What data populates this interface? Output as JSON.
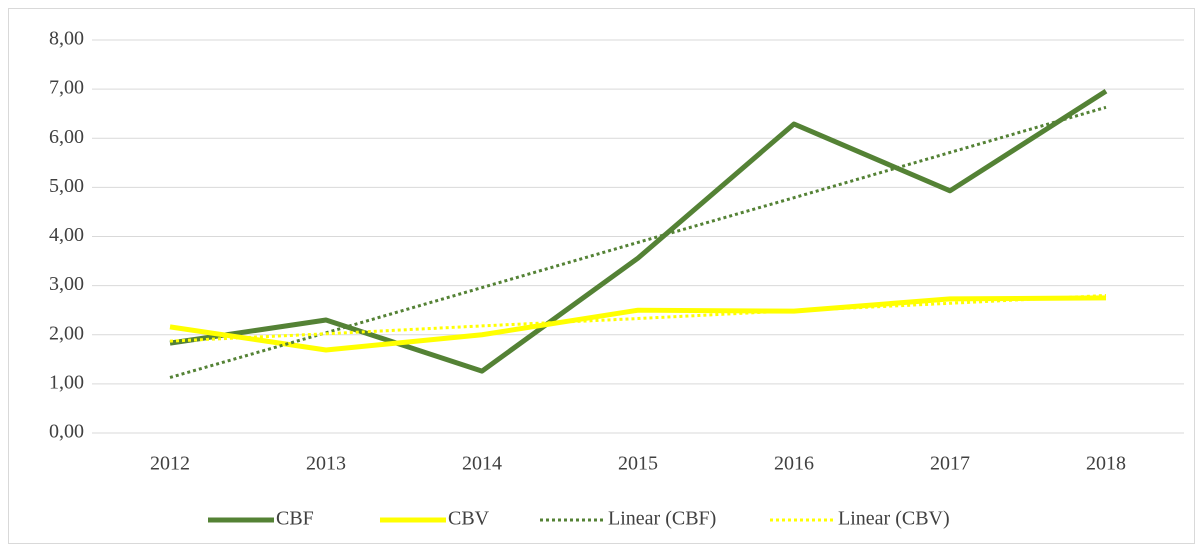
{
  "chart_data": {
    "type": "line",
    "categories": [
      "2012",
      "2013",
      "2014",
      "2015",
      "2016",
      "2017",
      "2018"
    ],
    "series": [
      {
        "name": "CBF",
        "color": "#548235",
        "style": "solid",
        "values": [
          1.83,
          2.3,
          1.26,
          3.56,
          6.29,
          4.93,
          6.96
        ]
      },
      {
        "name": "CBV",
        "color": "#ffff00",
        "style": "solid",
        "values": [
          2.16,
          1.69,
          2.0,
          2.5,
          2.48,
          2.73,
          2.75
        ]
      },
      {
        "name": "Linear (CBF)",
        "color": "#548235",
        "style": "dotted",
        "values": [
          1.13,
          2.04,
          2.96,
          3.88,
          4.79,
          5.71,
          6.63
        ]
      },
      {
        "name": "Linear (CBV)",
        "color": "#ffff00",
        "style": "dotted",
        "values": [
          1.87,
          2.02,
          2.18,
          2.33,
          2.49,
          2.64,
          2.8
        ]
      }
    ],
    "ylim": [
      0,
      8
    ],
    "yticks": [
      {
        "value": 0,
        "label": "0,00"
      },
      {
        "value": 1,
        "label": "1,00"
      },
      {
        "value": 2,
        "label": "2,00"
      },
      {
        "value": 3,
        "label": "3,00"
      },
      {
        "value": 4,
        "label": "4,00"
      },
      {
        "value": 5,
        "label": "5,00"
      },
      {
        "value": 6,
        "label": "6,00"
      },
      {
        "value": 7,
        "label": "7,00"
      },
      {
        "value": 8,
        "label": "8,00"
      }
    ],
    "grid": true,
    "legend": "bottom"
  }
}
